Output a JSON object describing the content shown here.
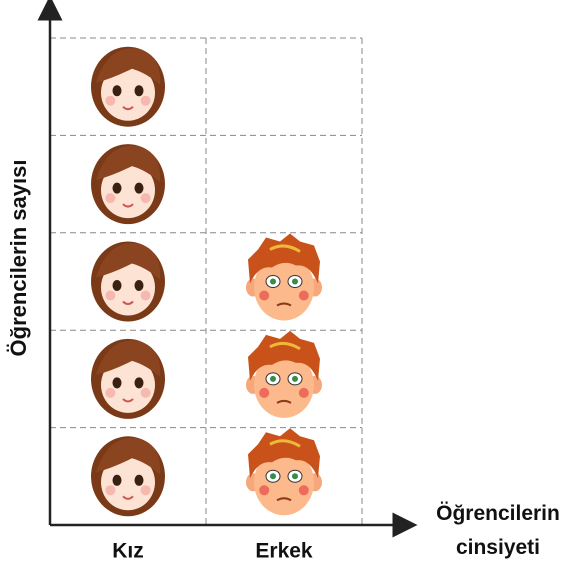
{
  "chart_data": {
    "type": "pictograph",
    "x_label": "Öğrencilerin cinsiyeti",
    "y_label": "Öğrencilerin sayısı",
    "categories": [
      "Kız",
      "Erkek"
    ],
    "values": [
      5,
      3
    ],
    "ylim": [
      0,
      5
    ],
    "grid": true
  }
}
